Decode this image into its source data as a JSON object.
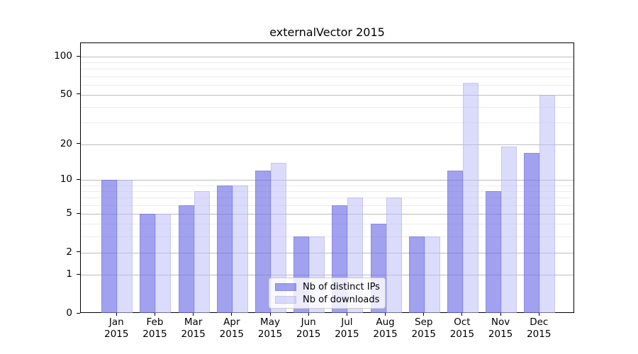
{
  "chart_data": {
    "type": "bar",
    "title": "externalVector 2015",
    "categories": [
      "Jan",
      "Feb",
      "Mar",
      "Apr",
      "May",
      "Jun",
      "Jul",
      "Aug",
      "Sep",
      "Oct",
      "Nov",
      "Dec"
    ],
    "x_year_label": "2015",
    "series": [
      {
        "name": "Nb of distinct IPs",
        "values": [
          10,
          5,
          6,
          9,
          12,
          3,
          6,
          4,
          3,
          12,
          8,
          17
        ],
        "fill": "rgba(110,110,230,0.65)",
        "edge": "rgba(100,100,215,0.35)",
        "approx_hex_on_white": "#a1a1ef"
      },
      {
        "name": "Nb of downloads",
        "values": [
          10,
          5,
          8,
          9,
          14,
          3,
          7,
          7,
          3,
          62,
          19,
          50
        ],
        "fill": "rgba(190,190,248,0.55)",
        "edge": "rgba(140,140,225,0.25)",
        "approx_hex_on_white": "#dbdbfb"
      }
    ],
    "yscale": "log1p",
    "ylim": [
      0,
      128
    ],
    "y_major_ticks": [
      100,
      50,
      20,
      10,
      5,
      2,
      1,
      0
    ],
    "y_minor_gridlines": [
      3,
      4,
      6,
      7,
      8,
      9,
      30,
      40,
      60,
      70,
      80,
      90
    ],
    "grid": "both",
    "legend_position": "lower center",
    "xlabel": "",
    "ylabel": ""
  }
}
